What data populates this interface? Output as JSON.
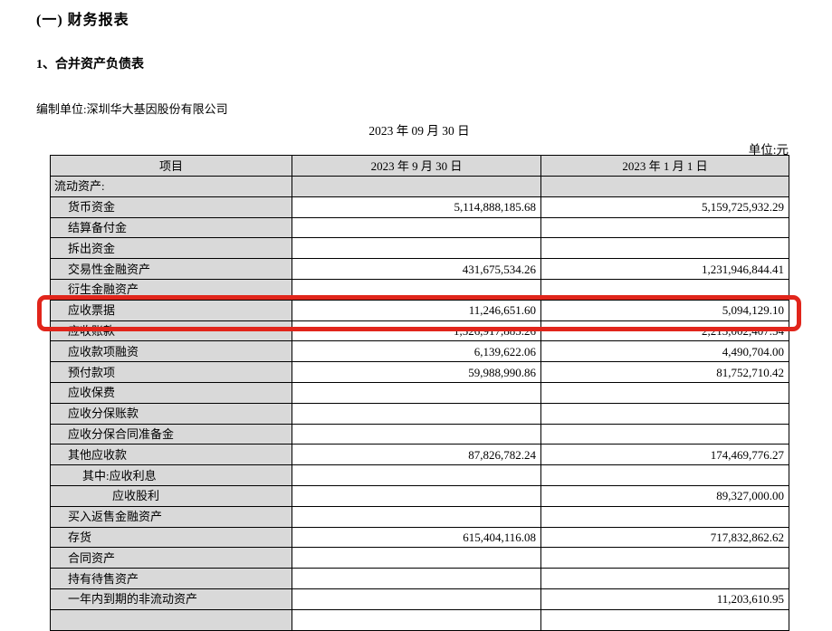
{
  "page": {
    "section_title": "(一) 财务报表",
    "subsection_title": "1、合并资产负债表",
    "prepared_by": "编制单位:深圳华大基因股份有限公司",
    "statement_date": "2023 年 09 月 30 日",
    "unit_label": "单位:元"
  },
  "table": {
    "columns": [
      "项目",
      "2023 年 9 月 30 日",
      "2023 年 1 月 1 日"
    ],
    "rows": [
      {
        "label": "流动资产:",
        "indent": 0,
        "v1": "",
        "v2": "",
        "shaded": true
      },
      {
        "label": "货币资金",
        "indent": 1,
        "v1": "5,114,888,185.68",
        "v2": "5,159,725,932.29"
      },
      {
        "label": "结算备付金",
        "indent": 1,
        "v1": "",
        "v2": ""
      },
      {
        "label": "拆出资金",
        "indent": 1,
        "v1": "",
        "v2": ""
      },
      {
        "label": "交易性金融资产",
        "indent": 1,
        "v1": "431,675,534.26",
        "v2": "1,231,946,844.41"
      },
      {
        "label": "衍生金融资产",
        "indent": 1,
        "v1": "",
        "v2": ""
      },
      {
        "label": "应收票据",
        "indent": 1,
        "v1": "11,246,651.60",
        "v2": "5,094,129.10"
      },
      {
        "label": "应收账款",
        "indent": 1,
        "v1": "1,526,917,885.26",
        "v2": "2,213,002,407.54",
        "highlighted": true
      },
      {
        "label": "应收款项融资",
        "indent": 1,
        "v1": "6,139,622.06",
        "v2": "4,490,704.00"
      },
      {
        "label": "预付款项",
        "indent": 1,
        "v1": "59,988,990.86",
        "v2": "81,752,710.42"
      },
      {
        "label": "应收保费",
        "indent": 1,
        "v1": "",
        "v2": ""
      },
      {
        "label": "应收分保账款",
        "indent": 1,
        "v1": "",
        "v2": ""
      },
      {
        "label": "应收分保合同准备金",
        "indent": 1,
        "v1": "",
        "v2": ""
      },
      {
        "label": "其他应收款",
        "indent": 1,
        "v1": "87,826,782.24",
        "v2": "174,469,776.27"
      },
      {
        "label": "其中:应收利息",
        "indent": 2,
        "v1": "",
        "v2": ""
      },
      {
        "label": "应收股利",
        "indent": 3,
        "v1": "",
        "v2": "89,327,000.00"
      },
      {
        "label": "买入返售金融资产",
        "indent": 1,
        "v1": "",
        "v2": ""
      },
      {
        "label": "存货",
        "indent": 1,
        "v1": "615,404,116.08",
        "v2": "717,832,862.62"
      },
      {
        "label": "合同资产",
        "indent": 1,
        "v1": "",
        "v2": ""
      },
      {
        "label": "持有待售资产",
        "indent": 1,
        "v1": "",
        "v2": ""
      },
      {
        "label": "一年内到期的非流动资产",
        "indent": 1,
        "v1": "",
        "v2": "11,203,610.95"
      },
      {
        "label": "",
        "indent": 1,
        "v1": "",
        "v2": ""
      }
    ]
  },
  "highlight": {
    "color": "#e1251b",
    "highlighted_row_label": "应收账款"
  }
}
